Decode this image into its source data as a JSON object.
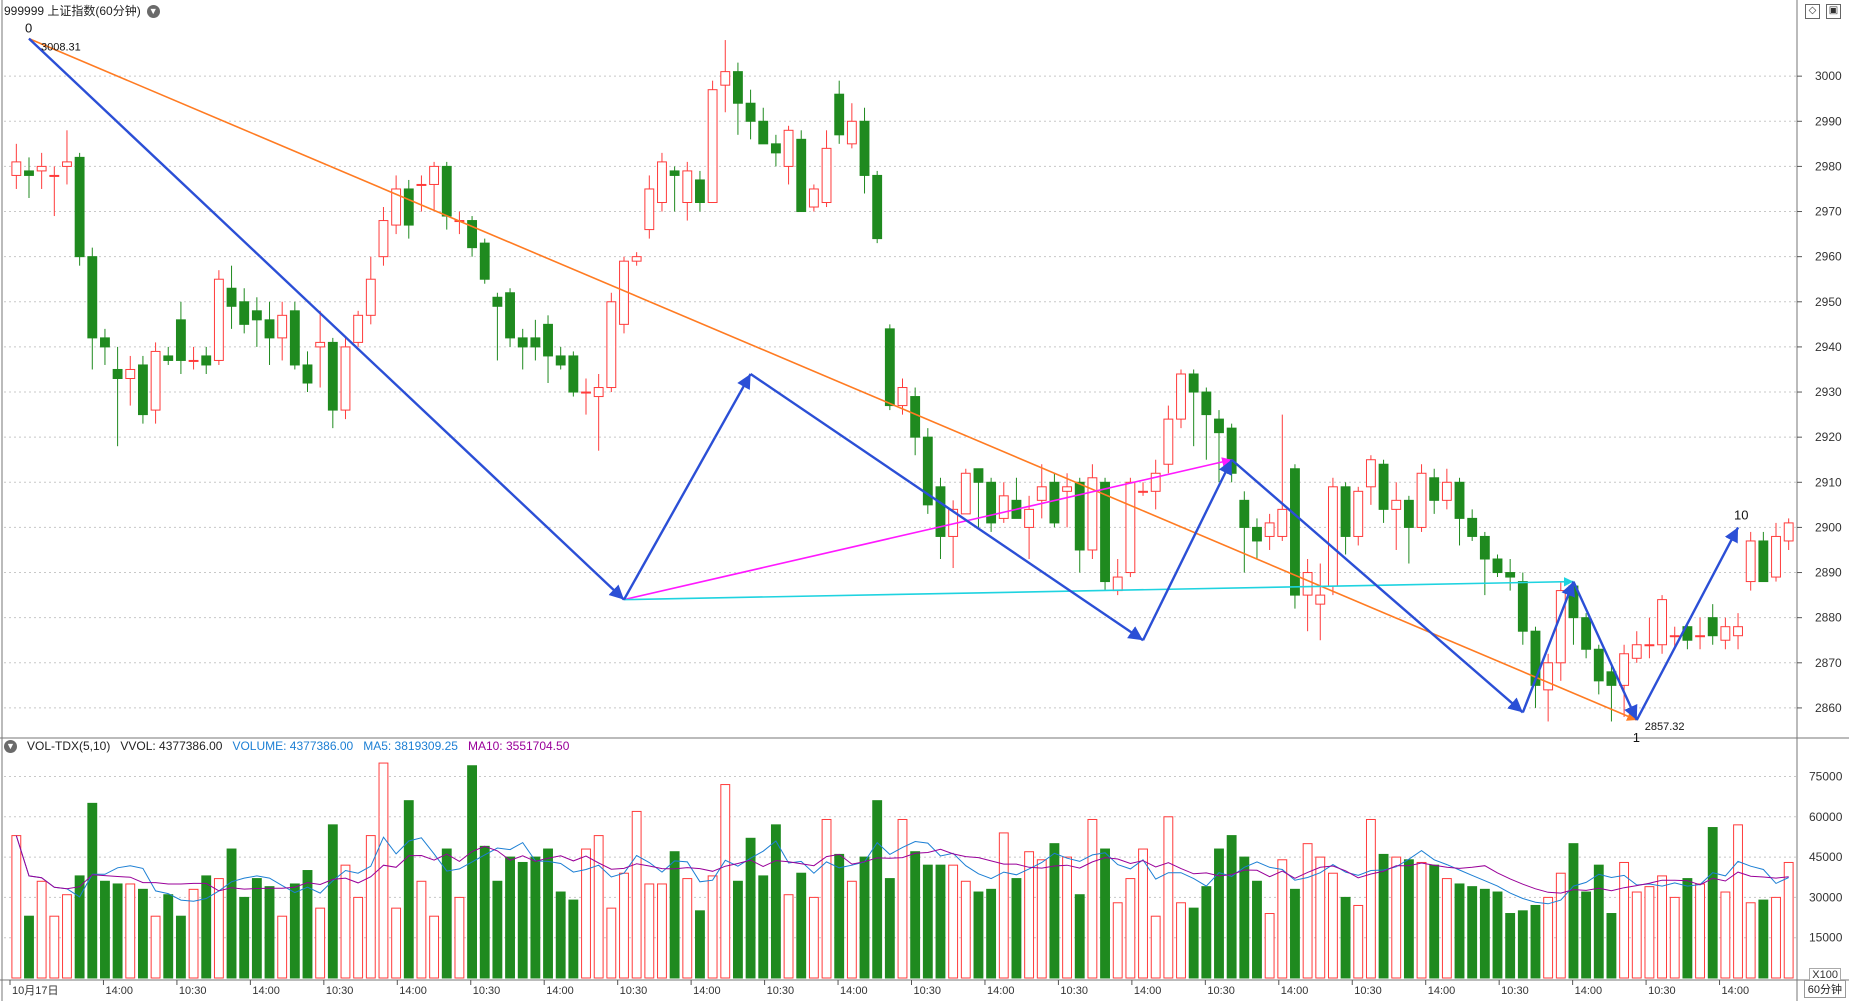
{
  "header": {
    "symbol_title": "999999 上证指数(60分钟)"
  },
  "volume_header": {
    "indicator": "VOL-TDX(5,10)",
    "vvol": "VVOL: 4377386.00",
    "volume": "VOLUME: 4377386.00",
    "ma5": "MA5: 3819309.25",
    "ma10": "MA10: 3551704.50"
  },
  "period_label": "60分钟",
  "x100_label": "X100",
  "colors": {
    "up": "#ff3b3b",
    "down": "#1f8a1f",
    "grid": "#c8c8c8",
    "blue_wave": "#2b4fd6",
    "orange_line": "#ff7b22",
    "magenta_line": "#ff19ff",
    "cyan_line": "#1fd3e0",
    "ma5": "#1c7fd4",
    "ma10": "#990099"
  },
  "chart_data": [
    {
      "type": "candlestick",
      "title": "999999 上证指数(60分钟)",
      "y_ticks": [
        2860,
        2870,
        2880,
        2890,
        2900,
        2910,
        2920,
        2930,
        2940,
        2950,
        2960,
        2970,
        2980,
        2990,
        3000
      ],
      "ylim": [
        2854,
        3012
      ],
      "grid": true,
      "x_tick_labels": [
        "10月17日",
        "14:00",
        "10:30",
        "14:00",
        "10:30",
        "14:00",
        "10:30",
        "14:00",
        "10:30",
        "14:00",
        "10:30",
        "14:00",
        "10:30",
        "14:00",
        "10:30",
        "14:00",
        "10:30",
        "14:00",
        "10:30",
        "14:00",
        "10:30",
        "14:00",
        "10:30",
        "14:00"
      ],
      "annotations": {
        "high_label": "3008.31",
        "low_label": "2857.32",
        "wave_labels": [
          "0",
          "1",
          "10"
        ]
      },
      "candles": [
        {
          "o": 2978,
          "c": 2981,
          "h": 2985,
          "l": 2975
        },
        {
          "o": 2979,
          "c": 2978,
          "h": 2982,
          "l": 2973
        },
        {
          "o": 2979,
          "c": 2980,
          "h": 2983,
          "l": 2975
        },
        {
          "o": 2978,
          "c": 2978,
          "h": 2980,
          "l": 2969
        },
        {
          "o": 2980,
          "c": 2981,
          "h": 2988,
          "l": 2976
        },
        {
          "o": 2982,
          "c": 2960,
          "h": 2983,
          "l": 2958
        },
        {
          "o": 2960,
          "c": 2942,
          "h": 2962,
          "l": 2935
        },
        {
          "o": 2942,
          "c": 2940,
          "h": 2944,
          "l": 2936
        },
        {
          "o": 2935,
          "c": 2933,
          "h": 2940,
          "l": 2918
        },
        {
          "o": 2933,
          "c": 2935,
          "h": 2938,
          "l": 2927
        },
        {
          "o": 2936,
          "c": 2925,
          "h": 2938,
          "l": 2923
        },
        {
          "o": 2926,
          "c": 2939,
          "h": 2941,
          "l": 2923
        },
        {
          "o": 2938,
          "c": 2937,
          "h": 2940,
          "l": 2936
        },
        {
          "o": 2946,
          "c": 2937,
          "h": 2950,
          "l": 2934
        },
        {
          "o": 2937,
          "c": 2937,
          "h": 2940,
          "l": 2935
        },
        {
          "o": 2938,
          "c": 2936,
          "h": 2940,
          "l": 2934
        },
        {
          "o": 2937,
          "c": 2955,
          "h": 2957,
          "l": 2936
        },
        {
          "o": 2953,
          "c": 2949,
          "h": 2958,
          "l": 2944
        },
        {
          "o": 2950,
          "c": 2945,
          "h": 2953,
          "l": 2943
        },
        {
          "o": 2948,
          "c": 2946,
          "h": 2951,
          "l": 2940
        },
        {
          "o": 2946,
          "c": 2942,
          "h": 2950,
          "l": 2936
        },
        {
          "o": 2942,
          "c": 2947,
          "h": 2950,
          "l": 2937
        },
        {
          "o": 2948,
          "c": 2936,
          "h": 2950,
          "l": 2935
        },
        {
          "o": 2936,
          "c": 2932,
          "h": 2939,
          "l": 2930
        },
        {
          "o": 2940,
          "c": 2941,
          "h": 2948,
          "l": 2931
        },
        {
          "o": 2941,
          "c": 2926,
          "h": 2942,
          "l": 2922
        },
        {
          "o": 2926,
          "c": 2940,
          "h": 2942,
          "l": 2924
        },
        {
          "o": 2941,
          "c": 2947,
          "h": 2948,
          "l": 2940
        },
        {
          "o": 2947,
          "c": 2955,
          "h": 2960,
          "l": 2945
        },
        {
          "o": 2960,
          "c": 2968,
          "h": 2971,
          "l": 2958
        },
        {
          "o": 2967,
          "c": 2975,
          "h": 2978,
          "l": 2965
        },
        {
          "o": 2975,
          "c": 2967,
          "h": 2977,
          "l": 2964
        },
        {
          "o": 2976,
          "c": 2976,
          "h": 2978,
          "l": 2970
        },
        {
          "o": 2976,
          "c": 2980,
          "h": 2981,
          "l": 2970
        },
        {
          "o": 2980,
          "c": 2969,
          "h": 2981,
          "l": 2966
        },
        {
          "o": 2968,
          "c": 2968,
          "h": 2970,
          "l": 2965
        },
        {
          "o": 2968,
          "c": 2962,
          "h": 2969,
          "l": 2960
        },
        {
          "o": 2963,
          "c": 2955,
          "h": 2964,
          "l": 2954
        },
        {
          "o": 2951,
          "c": 2949,
          "h": 2952,
          "l": 2937
        },
        {
          "o": 2952,
          "c": 2942,
          "h": 2953,
          "l": 2940
        },
        {
          "o": 2942,
          "c": 2940,
          "h": 2944,
          "l": 2935
        },
        {
          "o": 2942,
          "c": 2940,
          "h": 2946,
          "l": 2937
        },
        {
          "o": 2945,
          "c": 2938,
          "h": 2947,
          "l": 2932
        },
        {
          "o": 2938,
          "c": 2936,
          "h": 2940,
          "l": 2935
        },
        {
          "o": 2938,
          "c": 2930,
          "h": 2939,
          "l": 2929
        },
        {
          "o": 2930,
          "c": 2930,
          "h": 2933,
          "l": 2925
        },
        {
          "o": 2929,
          "c": 2931,
          "h": 2934,
          "l": 2917
        },
        {
          "o": 2931,
          "c": 2950,
          "h": 2952,
          "l": 2930
        },
        {
          "o": 2945,
          "c": 2959,
          "h": 2960,
          "l": 2943
        },
        {
          "o": 2959,
          "c": 2960,
          "h": 2961,
          "l": 2958
        },
        {
          "o": 2966,
          "c": 2975,
          "h": 2978,
          "l": 2964
        },
        {
          "o": 2972,
          "c": 2981,
          "h": 2983,
          "l": 2970
        },
        {
          "o": 2979,
          "c": 2978,
          "h": 2980,
          "l": 2970
        },
        {
          "o": 2972,
          "c": 2979,
          "h": 2981,
          "l": 2968
        },
        {
          "o": 2977,
          "c": 2972,
          "h": 2979,
          "l": 2970
        },
        {
          "o": 2972,
          "c": 2997,
          "h": 2999,
          "l": 2972
        },
        {
          "o": 2998,
          "c": 3001,
          "h": 3008,
          "l": 2992
        },
        {
          "o": 3001,
          "c": 2994,
          "h": 3003,
          "l": 2987
        },
        {
          "o": 2994,
          "c": 2990,
          "h": 2997,
          "l": 2986
        },
        {
          "o": 2990,
          "c": 2985,
          "h": 2993,
          "l": 2985
        },
        {
          "o": 2985,
          "c": 2983,
          "h": 2987,
          "l": 2980
        },
        {
          "o": 2980,
          "c": 2988,
          "h": 2989,
          "l": 2976
        },
        {
          "o": 2986,
          "c": 2970,
          "h": 2988,
          "l": 2970
        },
        {
          "o": 2971,
          "c": 2975,
          "h": 2976,
          "l": 2970
        },
        {
          "o": 2972,
          "c": 2984,
          "h": 2988,
          "l": 2971
        },
        {
          "o": 2996,
          "c": 2987,
          "h": 2999,
          "l": 2985
        },
        {
          "o": 2985,
          "c": 2990,
          "h": 2994,
          "l": 2984
        },
        {
          "o": 2990,
          "c": 2978,
          "h": 2993,
          "l": 2974
        },
        {
          "o": 2978,
          "c": 2964,
          "h": 2979,
          "l": 2963
        },
        {
          "o": 2944,
          "c": 2927,
          "h": 2945,
          "l": 2926
        },
        {
          "o": 2927,
          "c": 2931,
          "h": 2933,
          "l": 2925
        },
        {
          "o": 2929,
          "c": 2920,
          "h": 2931,
          "l": 2916
        },
        {
          "o": 2920,
          "c": 2905,
          "h": 2922,
          "l": 2903
        },
        {
          "o": 2909,
          "c": 2898,
          "h": 2911,
          "l": 2893
        },
        {
          "o": 2898,
          "c": 2904,
          "h": 2906,
          "l": 2891
        },
        {
          "o": 2903,
          "c": 2912,
          "h": 2913,
          "l": 2903
        },
        {
          "o": 2913,
          "c": 2910,
          "h": 2913,
          "l": 2900
        },
        {
          "o": 2910,
          "c": 2901,
          "h": 2911,
          "l": 2899
        },
        {
          "o": 2902,
          "c": 2907,
          "h": 2910,
          "l": 2901
        },
        {
          "o": 2906,
          "c": 2902,
          "h": 2911,
          "l": 2902
        },
        {
          "o": 2900,
          "c": 2904,
          "h": 2907,
          "l": 2893
        },
        {
          "o": 2906,
          "c": 2909,
          "h": 2914,
          "l": 2902
        },
        {
          "o": 2910,
          "c": 2901,
          "h": 2912,
          "l": 2900
        },
        {
          "o": 2908,
          "c": 2909,
          "h": 2912,
          "l": 2900
        },
        {
          "o": 2910,
          "c": 2895,
          "h": 2911,
          "l": 2890
        },
        {
          "o": 2895,
          "c": 2911,
          "h": 2914,
          "l": 2893
        },
        {
          "o": 2910,
          "c": 2888,
          "h": 2911,
          "l": 2886
        },
        {
          "o": 2886,
          "c": 2889,
          "h": 2893,
          "l": 2885
        },
        {
          "o": 2890,
          "c": 2910,
          "h": 2911,
          "l": 2889
        },
        {
          "o": 2908,
          "c": 2908,
          "h": 2910,
          "l": 2907
        },
        {
          "o": 2908,
          "c": 2912,
          "h": 2915,
          "l": 2904
        },
        {
          "o": 2914,
          "c": 2924,
          "h": 2927,
          "l": 2912
        },
        {
          "o": 2924,
          "c": 2934,
          "h": 2935,
          "l": 2922
        },
        {
          "o": 2934,
          "c": 2930,
          "h": 2935,
          "l": 2918
        },
        {
          "o": 2930,
          "c": 2925,
          "h": 2931,
          "l": 2915
        },
        {
          "o": 2924,
          "c": 2921,
          "h": 2926,
          "l": 2910
        },
        {
          "o": 2922,
          "c": 2912,
          "h": 2923,
          "l": 2910
        },
        {
          "o": 2906,
          "c": 2900,
          "h": 2908,
          "l": 2890
        },
        {
          "o": 2900,
          "c": 2897,
          "h": 2902,
          "l": 2893
        },
        {
          "o": 2898,
          "c": 2901,
          "h": 2903,
          "l": 2895
        },
        {
          "o": 2898,
          "c": 2904,
          "h": 2925,
          "l": 2897
        },
        {
          "o": 2913,
          "c": 2885,
          "h": 2914,
          "l": 2882
        },
        {
          "o": 2885,
          "c": 2890,
          "h": 2893,
          "l": 2877
        },
        {
          "o": 2883,
          "c": 2885,
          "h": 2892,
          "l": 2875
        },
        {
          "o": 2887,
          "c": 2909,
          "h": 2911,
          "l": 2885
        },
        {
          "o": 2909,
          "c": 2898,
          "h": 2910,
          "l": 2894
        },
        {
          "o": 2898,
          "c": 2908,
          "h": 2909,
          "l": 2896
        },
        {
          "o": 2909,
          "c": 2915,
          "h": 2916,
          "l": 2905
        },
        {
          "o": 2914,
          "c": 2904,
          "h": 2915,
          "l": 2901
        },
        {
          "o": 2904,
          "c": 2906,
          "h": 2910,
          "l": 2895
        },
        {
          "o": 2906,
          "c": 2900,
          "h": 2907,
          "l": 2892
        },
        {
          "o": 2900,
          "c": 2912,
          "h": 2914,
          "l": 2899
        },
        {
          "o": 2911,
          "c": 2906,
          "h": 2913,
          "l": 2903
        },
        {
          "o": 2906,
          "c": 2910,
          "h": 2913,
          "l": 2904
        },
        {
          "o": 2910,
          "c": 2902,
          "h": 2911,
          "l": 2896
        },
        {
          "o": 2902,
          "c": 2898,
          "h": 2904,
          "l": 2897
        },
        {
          "o": 2898,
          "c": 2893,
          "h": 2899,
          "l": 2885
        },
        {
          "o": 2893,
          "c": 2890,
          "h": 2894,
          "l": 2889
        },
        {
          "o": 2890,
          "c": 2889,
          "h": 2893,
          "l": 2886
        },
        {
          "o": 2888,
          "c": 2877,
          "h": 2890,
          "l": 2874
        },
        {
          "o": 2877,
          "c": 2865,
          "h": 2878,
          "l": 2860
        },
        {
          "o": 2864,
          "c": 2870,
          "h": 2872,
          "l": 2857
        },
        {
          "o": 2870,
          "c": 2886,
          "h": 2888,
          "l": 2866
        },
        {
          "o": 2887,
          "c": 2880,
          "h": 2888,
          "l": 2874
        },
        {
          "o": 2880,
          "c": 2873,
          "h": 2881,
          "l": 2871
        },
        {
          "o": 2873,
          "c": 2866,
          "h": 2874,
          "l": 2863
        },
        {
          "o": 2868,
          "c": 2865,
          "h": 2870,
          "l": 2857
        },
        {
          "o": 2865,
          "c": 2872,
          "h": 2874,
          "l": 2858
        },
        {
          "o": 2871,
          "c": 2874,
          "h": 2877,
          "l": 2870
        },
        {
          "o": 2874,
          "c": 2874,
          "h": 2880,
          "l": 2871
        },
        {
          "o": 2874,
          "c": 2884,
          "h": 2885,
          "l": 2872
        },
        {
          "o": 2876,
          "c": 2876,
          "h": 2878,
          "l": 2873
        },
        {
          "o": 2878,
          "c": 2875,
          "h": 2879,
          "l": 2873
        },
        {
          "o": 2876,
          "c": 2876,
          "h": 2880,
          "l": 2873
        },
        {
          "o": 2880,
          "c": 2876,
          "h": 2883,
          "l": 2874
        },
        {
          "o": 2875,
          "c": 2878,
          "h": 2880,
          "l": 2873
        },
        {
          "o": 2876,
          "c": 2878,
          "h": 2881,
          "l": 2873
        },
        {
          "o": 2888,
          "c": 2897,
          "h": 2899,
          "l": 2886
        },
        {
          "o": 2897,
          "c": 2888,
          "h": 2899,
          "l": 2888
        },
        {
          "o": 2889,
          "c": 2898,
          "h": 2901,
          "l": 2888
        },
        {
          "o": 2897,
          "c": 2901,
          "h": 2902,
          "l": 2895
        }
      ],
      "waves": {
        "blue": [
          [
            1,
            3008.31
          ],
          [
            48,
            2884
          ],
          [
            58,
            2934
          ],
          [
            89,
            2875
          ],
          [
            96,
            2915
          ],
          [
            119,
            2859
          ],
          [
            123,
            2888
          ],
          [
            128,
            2857.32
          ],
          [
            136,
            2900
          ]
        ],
        "orange": [
          [
            1,
            3008.31
          ],
          [
            128,
            2857.32
          ]
        ],
        "magenta": [
          [
            48,
            2884
          ],
          [
            96,
            2915
          ]
        ],
        "cyan": [
          [
            48,
            2884
          ],
          [
            123,
            2888
          ]
        ]
      }
    },
    {
      "type": "bar",
      "title": "VOL-TDX(5,10)",
      "y_ticks": [
        15000,
        30000,
        45000,
        60000,
        75000
      ],
      "ylim": [
        0,
        83000
      ],
      "values": [
        53000,
        23000,
        36000,
        23000,
        31000,
        38000,
        65000,
        36000,
        35000,
        35000,
        33000,
        23000,
        31000,
        23000,
        33000,
        38000,
        37000,
        48000,
        30000,
        37000,
        34000,
        23000,
        35000,
        40000,
        26000,
        57000,
        42000,
        30000,
        53000,
        80000,
        26000,
        66000,
        36000,
        23000,
        48000,
        30000,
        79000,
        49000,
        36000,
        45000,
        43000,
        45000,
        48000,
        32000,
        29000,
        48000,
        53000,
        26000,
        39000,
        62000,
        35000,
        35000,
        47000,
        37000,
        25000,
        38000,
        72000,
        36000,
        52000,
        38000,
        57000,
        31000,
        39000,
        30000,
        59000,
        46000,
        36000,
        45000,
        66000,
        37000,
        59000,
        47000,
        42000,
        42000,
        42000,
        36000,
        32000,
        33000,
        54000,
        37000,
        47000,
        44000,
        50000,
        45000,
        31000,
        59000,
        48000,
        28000,
        37000,
        48000,
        23000,
        60000,
        28000,
        26000,
        34000,
        48000,
        53000,
        45000,
        36000,
        24000,
        44000,
        33000,
        50000,
        45000,
        39000,
        30000,
        27000,
        59000,
        46000,
        45000,
        44000,
        43000,
        42000,
        37000,
        35000,
        34000,
        33000,
        32000,
        24000,
        25000,
        27000,
        30000,
        39000,
        50000,
        32000,
        42000,
        24000,
        43000,
        32000,
        34000,
        38000,
        30000,
        37000,
        35000,
        56000,
        32000,
        57000,
        28000,
        29000,
        30000,
        43000
      ]
    }
  ]
}
